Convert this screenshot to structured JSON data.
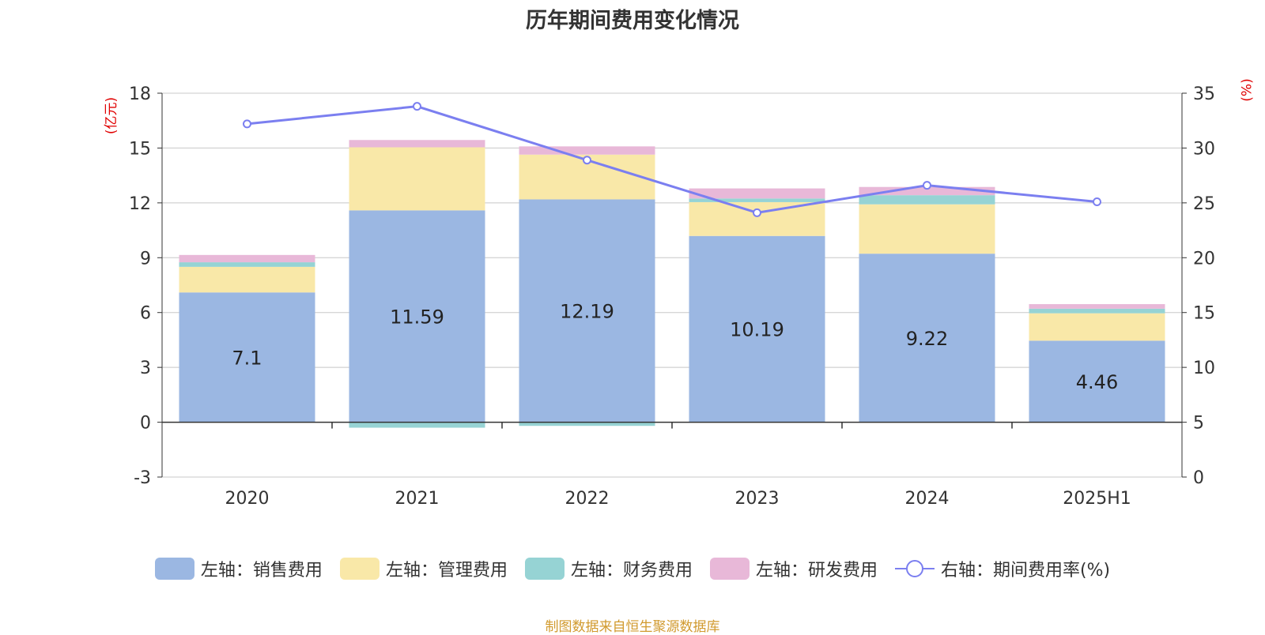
{
  "title": "历年期间费用变化情况",
  "left_unit": "(亿元)",
  "right_unit": "(%)",
  "source": "制图数据来自恒生聚源数据库",
  "chart_data": {
    "type": "bar",
    "stacked": true,
    "categories": [
      "2020",
      "2021",
      "2022",
      "2023",
      "2024",
      "2025H1"
    ],
    "left_axis": {
      "ylim": [
        -3,
        18
      ],
      "ticks": [
        "-3",
        "0",
        "3",
        "6",
        "9",
        "12",
        "15",
        "18"
      ]
    },
    "right_axis": {
      "ylim": [
        0,
        35
      ],
      "ticks": [
        "0",
        "5",
        "10",
        "15",
        "20",
        "25",
        "30",
        "35"
      ]
    },
    "series": [
      {
        "name": "左轴：销售费用",
        "axis": "left",
        "color": "#9bb7e2",
        "values": [
          7.1,
          11.59,
          12.19,
          10.19,
          9.22,
          4.46
        ],
        "show_labels": true
      },
      {
        "name": "左轴：管理费用",
        "axis": "left",
        "color": "#f9e8a8",
        "values": [
          1.4,
          3.45,
          2.45,
          1.85,
          2.7,
          1.5
        ]
      },
      {
        "name": "左轴：财务费用",
        "axis": "left",
        "color": "#96d3d4",
        "values": [
          0.25,
          -0.3,
          -0.2,
          0.2,
          0.5,
          0.25
        ]
      },
      {
        "name": "左轴：研发费用",
        "axis": "left",
        "color": "#e8b8d8",
        "values": [
          0.4,
          0.4,
          0.45,
          0.55,
          0.45,
          0.25
        ]
      }
    ],
    "line_series": {
      "name": "右轴：期间费用率(%)",
      "axis": "right",
      "color": "#7b7ff0",
      "values": [
        32.2,
        33.8,
        28.9,
        24.1,
        26.6,
        25.1
      ]
    },
    "grid": true,
    "legend": "bottom"
  }
}
